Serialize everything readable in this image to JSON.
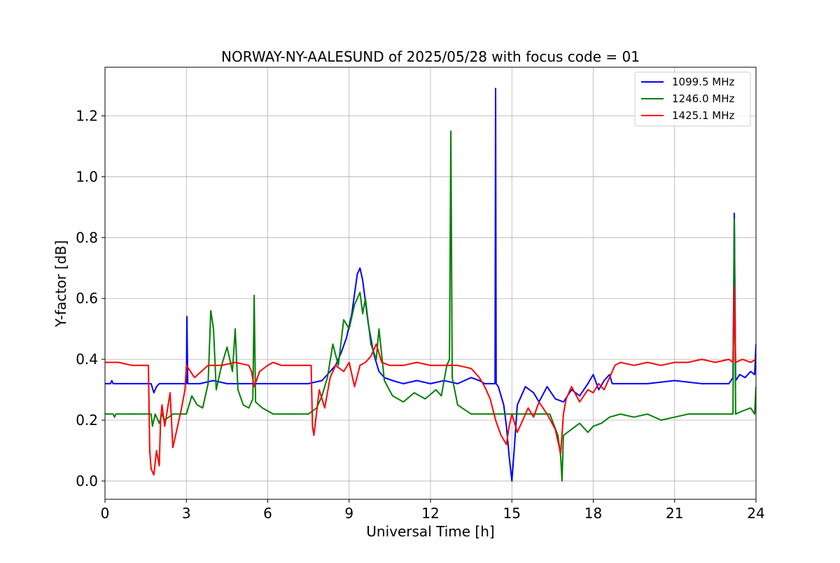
{
  "chart_data": {
    "type": "line",
    "title": "NORWAY-NY-AALESUND of 2025/05/28 with focus code = 01",
    "xlabel": "Universal Time [h]",
    "ylabel": "Y-factor [dB]",
    "xlim": [
      0,
      24
    ],
    "ylim": [
      -0.06,
      1.36
    ],
    "xticks": [
      0,
      3,
      6,
      9,
      12,
      15,
      18,
      21,
      24
    ],
    "xtick_labels": [
      "0",
      "3",
      "6",
      "9",
      "12",
      "15",
      "18",
      "21",
      "24"
    ],
    "yticks": [
      0.0,
      0.2,
      0.4,
      0.6,
      0.8,
      1.0,
      1.2
    ],
    "ytick_labels": [
      "0.0",
      "0.2",
      "0.4",
      "0.6",
      "0.8",
      "1.0",
      "1.2"
    ],
    "grid": true,
    "legend_position": "top-right",
    "series": [
      {
        "name": "1099.5 MHz",
        "color": "#0000ff",
        "x": [
          0,
          0.2,
          0.25,
          0.3,
          1.7,
          1.8,
          1.9,
          2.0,
          2.1,
          2.95,
          3.0,
          3.02,
          3.05,
          3.1,
          3.5,
          4.0,
          4.5,
          5.0,
          7.5,
          8.0,
          8.5,
          8.7,
          8.9,
          9.1,
          9.3,
          9.4,
          9.5,
          9.7,
          9.9,
          10.1,
          10.3,
          10.6,
          11.0,
          11.5,
          12.0,
          12.5,
          13.0,
          13.5,
          13.8,
          14.0,
          14.3,
          14.38,
          14.4,
          14.42,
          14.5,
          14.7,
          14.8,
          14.9,
          15.0,
          15.1,
          15.2,
          15.5,
          15.8,
          16.0,
          16.3,
          16.6,
          16.9,
          17.2,
          17.5,
          17.8,
          18.0,
          18.2,
          18.4,
          18.6,
          18.7,
          19.0,
          20.0,
          21.0,
          22.0,
          23.0,
          23.15,
          23.2,
          23.25,
          23.4,
          23.6,
          23.8,
          23.95,
          24.0
        ],
        "y": [
          0.32,
          0.32,
          0.33,
          0.32,
          0.32,
          0.29,
          0.31,
          0.32,
          0.32,
          0.32,
          0.32,
          0.54,
          0.32,
          0.32,
          0.32,
          0.33,
          0.32,
          0.32,
          0.32,
          0.33,
          0.38,
          0.42,
          0.47,
          0.55,
          0.68,
          0.7,
          0.66,
          0.52,
          0.42,
          0.36,
          0.34,
          0.33,
          0.32,
          0.33,
          0.32,
          0.33,
          0.32,
          0.34,
          0.33,
          0.32,
          0.32,
          0.32,
          1.29,
          0.32,
          0.31,
          0.25,
          0.18,
          0.08,
          0.0,
          0.12,
          0.25,
          0.31,
          0.29,
          0.26,
          0.31,
          0.27,
          0.26,
          0.3,
          0.28,
          0.32,
          0.35,
          0.3,
          0.33,
          0.35,
          0.32,
          0.32,
          0.32,
          0.33,
          0.32,
          0.32,
          0.34,
          0.88,
          0.33,
          0.35,
          0.34,
          0.36,
          0.35,
          0.45
        ]
      },
      {
        "name": "1246.0 MHz",
        "color": "#008000",
        "x": [
          0,
          0.3,
          0.35,
          0.4,
          1.7,
          1.75,
          1.85,
          2.0,
          2.1,
          2.2,
          2.5,
          3.0,
          3.2,
          3.4,
          3.6,
          3.8,
          3.9,
          4.0,
          4.1,
          4.3,
          4.5,
          4.7,
          4.8,
          4.9,
          5.1,
          5.3,
          5.45,
          5.5,
          5.55,
          5.8,
          6.2,
          6.8,
          7.2,
          7.5,
          7.8,
          8.0,
          8.2,
          8.4,
          8.6,
          8.8,
          9.0,
          9.2,
          9.4,
          9.5,
          9.6,
          9.8,
          10.0,
          10.1,
          10.3,
          10.6,
          11.0,
          11.4,
          11.8,
          12.2,
          12.4,
          12.6,
          12.7,
          12.75,
          12.8,
          13.0,
          13.5,
          14.0,
          14.5,
          15.0,
          15.5,
          16.0,
          16.4,
          16.7,
          16.8,
          16.85,
          16.9,
          17.2,
          17.5,
          17.8,
          18.0,
          18.3,
          18.6,
          19.0,
          19.5,
          20.0,
          20.5,
          21.0,
          21.5,
          22.0,
          23.0,
          23.15,
          23.2,
          23.25,
          23.5,
          23.8,
          23.95,
          24.0
        ],
        "y": [
          0.22,
          0.22,
          0.21,
          0.22,
          0.22,
          0.18,
          0.22,
          0.19,
          0.22,
          0.2,
          0.22,
          0.22,
          0.28,
          0.25,
          0.24,
          0.32,
          0.56,
          0.5,
          0.3,
          0.38,
          0.44,
          0.36,
          0.5,
          0.3,
          0.25,
          0.24,
          0.27,
          0.61,
          0.26,
          0.24,
          0.22,
          0.22,
          0.22,
          0.22,
          0.24,
          0.28,
          0.34,
          0.45,
          0.38,
          0.53,
          0.5,
          0.58,
          0.62,
          0.55,
          0.6,
          0.45,
          0.4,
          0.5,
          0.33,
          0.28,
          0.26,
          0.29,
          0.27,
          0.3,
          0.28,
          0.38,
          0.4,
          1.15,
          0.34,
          0.25,
          0.22,
          0.22,
          0.22,
          0.22,
          0.22,
          0.22,
          0.22,
          0.15,
          0.08,
          0.0,
          0.15,
          0.17,
          0.19,
          0.16,
          0.18,
          0.19,
          0.21,
          0.22,
          0.21,
          0.22,
          0.2,
          0.21,
          0.22,
          0.22,
          0.22,
          0.22,
          0.86,
          0.22,
          0.23,
          0.24,
          0.22,
          0.31
        ]
      },
      {
        "name": "1425.1 MHz",
        "color": "#ff0000",
        "x": [
          0,
          0.5,
          1.0,
          1.4,
          1.6,
          1.65,
          1.7,
          1.8,
          1.9,
          2.0,
          2.05,
          2.1,
          2.2,
          2.4,
          2.5,
          2.6,
          2.8,
          2.95,
          3.0,
          3.3,
          3.8,
          4.3,
          4.8,
          5.3,
          5.4,
          5.5,
          5.7,
          6.0,
          6.2,
          6.5,
          7.0,
          7.6,
          7.65,
          7.7,
          7.9,
          8.1,
          8.3,
          8.5,
          8.8,
          9.0,
          9.2,
          9.4,
          9.6,
          9.8,
          10.0,
          10.2,
          10.5,
          11.0,
          11.5,
          12.0,
          12.5,
          13.0,
          13.5,
          13.8,
          14.0,
          14.2,
          14.4,
          14.6,
          14.8,
          14.9,
          15.0,
          15.2,
          15.4,
          15.6,
          15.8,
          16.0,
          16.3,
          16.6,
          16.8,
          16.9,
          17.0,
          17.2,
          17.5,
          17.8,
          18.0,
          18.2,
          18.4,
          18.6,
          18.7,
          18.8,
          19.0,
          19.5,
          20.0,
          20.5,
          21.0,
          21.5,
          22.0,
          22.5,
          23.0,
          23.15,
          23.2,
          23.25,
          23.5,
          23.8,
          24.0
        ],
        "y": [
          0.39,
          0.39,
          0.38,
          0.38,
          0.38,
          0.1,
          0.04,
          0.02,
          0.1,
          0.05,
          0.2,
          0.25,
          0.18,
          0.29,
          0.11,
          0.15,
          0.23,
          0.3,
          0.38,
          0.34,
          0.38,
          0.38,
          0.39,
          0.38,
          0.36,
          0.31,
          0.36,
          0.38,
          0.39,
          0.38,
          0.38,
          0.38,
          0.18,
          0.15,
          0.3,
          0.24,
          0.34,
          0.38,
          0.36,
          0.39,
          0.31,
          0.38,
          0.39,
          0.41,
          0.45,
          0.39,
          0.38,
          0.38,
          0.39,
          0.38,
          0.38,
          0.38,
          0.37,
          0.34,
          0.31,
          0.27,
          0.2,
          0.15,
          0.12,
          0.18,
          0.22,
          0.16,
          0.2,
          0.24,
          0.21,
          0.26,
          0.22,
          0.17,
          0.09,
          0.22,
          0.27,
          0.31,
          0.26,
          0.3,
          0.29,
          0.32,
          0.3,
          0.34,
          0.36,
          0.38,
          0.39,
          0.38,
          0.39,
          0.38,
          0.39,
          0.39,
          0.4,
          0.39,
          0.4,
          0.39,
          0.64,
          0.39,
          0.4,
          0.39,
          0.4
        ]
      }
    ]
  }
}
